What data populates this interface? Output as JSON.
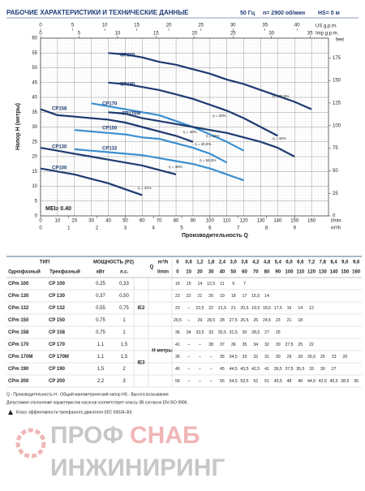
{
  "header": {
    "title": "РАБОЧИЕ ХАРАКТЕРИСТИКИ И ТЕХНИЧЕСКИЕ ДАННЫЕ",
    "frequency": "50 Гц",
    "speed": "n= 2900 об/мин",
    "hs": "HS= 0 м"
  },
  "chart_data": {
    "type": "line",
    "x_label": "Производительность Q",
    "y_label": "Напор H (метры)",
    "y2_label": "feet",
    "x_unit": "l/min",
    "m3h_unit": "m³/h",
    "us_unit": "US g.p.m.",
    "imp_unit": "Imp g.p.m.",
    "mei": "MEI≥ 0.40",
    "x": [
      0,
      10,
      20,
      30,
      40,
      50,
      60,
      70,
      80,
      90,
      100,
      110,
      120,
      130,
      140,
      150,
      160
    ],
    "xlim": [
      0,
      170
    ],
    "xticks": [
      0,
      10,
      20,
      30,
      40,
      50,
      60,
      70,
      80,
      90,
      100,
      110,
      120,
      130,
      140,
      150,
      160
    ],
    "ylim": [
      0,
      60
    ],
    "yticks": [
      0,
      5,
      10,
      15,
      20,
      25,
      30,
      35,
      40,
      45,
      50,
      55,
      60
    ],
    "y2lim": [
      0,
      196.85
    ],
    "y2ticks": [
      0,
      25,
      50,
      75,
      100,
      125,
      150,
      175
    ],
    "m3h_lim": [
      0,
      10.2
    ],
    "m3h_ticks": [
      0,
      1,
      2,
      3,
      4,
      5,
      6,
      7,
      8,
      9
    ],
    "us_lim": [
      0,
      44.9
    ],
    "us_ticks": [
      0,
      5,
      10,
      15,
      20,
      25,
      30,
      35,
      40
    ],
    "imp_lim": [
      0,
      37.4
    ],
    "imp_ticks": [
      0,
      5,
      10,
      15,
      20,
      25,
      30,
      35
    ],
    "grid": true,
    "series": [
      {
        "name": "CP200",
        "color": "#1e3a70",
        "values": [
          null,
          null,
          null,
          null,
          55,
          54.5,
          53.5,
          52,
          51,
          49.5,
          48,
          46,
          44.5,
          42.5,
          40.5,
          38.5,
          36
        ]
      },
      {
        "name": "CP190",
        "color": "#1e3a70",
        "values": [
          null,
          null,
          null,
          null,
          45,
          44.5,
          43.5,
          42.5,
          41,
          39.5,
          37.5,
          35.5,
          33,
          30,
          27,
          null,
          null
        ]
      },
      {
        "name": "CP170",
        "color": "#3b8fd0",
        "values": [
          null,
          null,
          null,
          38,
          37,
          36,
          35,
          34,
          32,
          30,
          27.5,
          25,
          22,
          null,
          null,
          null,
          null
        ]
      },
      {
        "name": "CP170M",
        "color": "#1e3a70",
        "values": [
          null,
          null,
          null,
          null,
          35,
          34.5,
          33,
          32,
          31,
          30,
          29,
          28,
          26.5,
          25,
          23,
          20,
          null
        ]
      },
      {
        "name": "CP158",
        "color": "#1e3a70",
        "values": [
          36,
          34,
          33.5,
          33,
          32.5,
          31.5,
          30,
          28.5,
          27,
          25,
          null,
          null,
          null,
          null,
          null,
          null,
          null
        ]
      },
      {
        "name": "CP150",
        "color": "#3b8fd0",
        "values": [
          null,
          null,
          29,
          28.5,
          28,
          27.5,
          26.5,
          26,
          24.5,
          23,
          21,
          18,
          null,
          null,
          null,
          null,
          null
        ]
      },
      {
        "name": "CP132",
        "color": "#3b8fd0",
        "values": [
          null,
          null,
          22.5,
          22,
          21.5,
          21,
          20.5,
          19.5,
          18.5,
          17.5,
          16,
          14,
          12,
          null,
          null,
          null,
          null
        ]
      },
      {
        "name": "CP130",
        "color": "#1e3a70",
        "values": [
          23,
          22,
          21,
          20,
          19,
          18,
          17,
          15.5,
          14,
          null,
          null,
          null,
          null,
          null,
          null,
          null,
          null
        ]
      },
      {
        "name": "CP100",
        "color": "#1e3a70",
        "values": [
          16,
          15,
          14,
          12.5,
          11,
          9,
          7,
          null,
          null,
          null,
          null,
          null,
          null,
          null,
          null,
          null,
          null
        ]
      }
    ],
    "annotations": [
      "η = 39,5%",
      "η = 33%",
      "η = 44%",
      "η = 40%",
      "η = 34%",
      "η = 40,5%",
      "η = 54,5%",
      "η = 38%",
      "η = 41%"
    ]
  },
  "table": {
    "type_header": "ТИП",
    "single": "Однофазный",
    "three": "Трехфазный",
    "power_header": "МОЩНОСТЬ (P2)",
    "kw": "кВт",
    "hp": "л.с.",
    "q": "Q",
    "m3h": "m³/h",
    "lmin": "l/min",
    "h": "H метры",
    "ie2": "IE2",
    "ie3": "IE3",
    "q_m3h": [
      "0",
      "0,6",
      "1,2",
      "1,8",
      "2,4",
      "3,0",
      "3,6",
      "4,2",
      "4,8",
      "5,4",
      "6,0",
      "6,6",
      "7,2",
      "7,8",
      "8,4",
      "9,0",
      "9,6"
    ],
    "q_lmin": [
      "0",
      "10",
      "20",
      "30",
      "40",
      "50",
      "60",
      "70",
      "80",
      "90",
      "100",
      "110",
      "120",
      "130",
      "140",
      "150",
      "160"
    ],
    "rows": [
      {
        "single": "CPm 100",
        "three": "CP 100",
        "kw": "0,25",
        "hp": "0,33",
        "heads": [
          "16",
          "15",
          "14",
          "12,5",
          "11",
          "9",
          "7"
        ]
      },
      {
        "single": "CPm 130",
        "three": "CP 130",
        "kw": "0,37",
        "hp": "0,50",
        "heads": [
          "23",
          "22",
          "21",
          "20",
          "19",
          "18",
          "17",
          "15,5",
          "14"
        ]
      },
      {
        "single": "CPm 132",
        "three": "CP 132",
        "kw": "0,55",
        "hp": "0,75",
        "heads": [
          "23",
          "–",
          "22,5",
          "22",
          "21,5",
          "21",
          "20,5",
          "19,5",
          "18,5",
          "17,5",
          "16",
          "14",
          "12"
        ]
      },
      {
        "single": "CPm 150",
        "three": "CP 150",
        "kw": "0,75",
        "hp": "1",
        "heads": [
          "29,5",
          "–",
          "29",
          "28,5",
          "28",
          "27,5",
          "26,5",
          "26",
          "24,5",
          "23",
          "21",
          "18"
        ]
      },
      {
        "single": "CPm 158",
        "three": "CP 158",
        "kw": "0,75",
        "hp": "1",
        "heads": [
          "36",
          "34",
          "33,5",
          "33",
          "32,5",
          "31,5",
          "30",
          "28,5",
          "27",
          "25"
        ]
      },
      {
        "single": "CPm 170",
        "three": "CP 170",
        "kw": "1,1",
        "hp": "1,5",
        "heads": [
          "41",
          "–",
          "–",
          "38",
          "37",
          "36",
          "35",
          "34",
          "32",
          "30",
          "27,5",
          "25",
          "22"
        ]
      },
      {
        "single": "CPm 170M",
        "three": "CP 170M",
        "kw": "1,1",
        "hp": "1,5",
        "heads": [
          "36",
          "–",
          "–",
          "–",
          "35",
          "34,5",
          "33",
          "32",
          "31",
          "30",
          "29",
          "28",
          "26,5",
          "25",
          "23",
          "20"
        ]
      },
      {
        "single": "CPm 190",
        "three": "CP 190",
        "kw": "1,5",
        "hp": "2",
        "heads": [
          "46",
          "–",
          "–",
          "–",
          "45",
          "44,5",
          "43,5",
          "42,5",
          "41",
          "39,5",
          "37,5",
          "35,5",
          "33",
          "30",
          "27"
        ]
      },
      {
        "single": "CPm 200",
        "three": "CP 200",
        "kw": "2,2",
        "hp": "3",
        "heads": [
          "56",
          "–",
          "–",
          "–",
          "55",
          "54,5",
          "53,5",
          "52",
          "51",
          "49,5",
          "48",
          "46",
          "44,5",
          "42,5",
          "40,5",
          "38,5",
          "36"
        ]
      }
    ]
  },
  "notes": [
    "Q - Производительность   H - Общий манометрический напор   HS - Высота всасывания",
    "Допустимое отклонение характеристик насосов соответствует классу 3B согласно EN ISO 9906.",
    "Класс эффективности трехфазного двигателя (IEC 60034-30)"
  ],
  "logo": {
    "a": "ПРОФ",
    "b": "СНАБ",
    "c": "ИНЖИНИРИНГ"
  }
}
